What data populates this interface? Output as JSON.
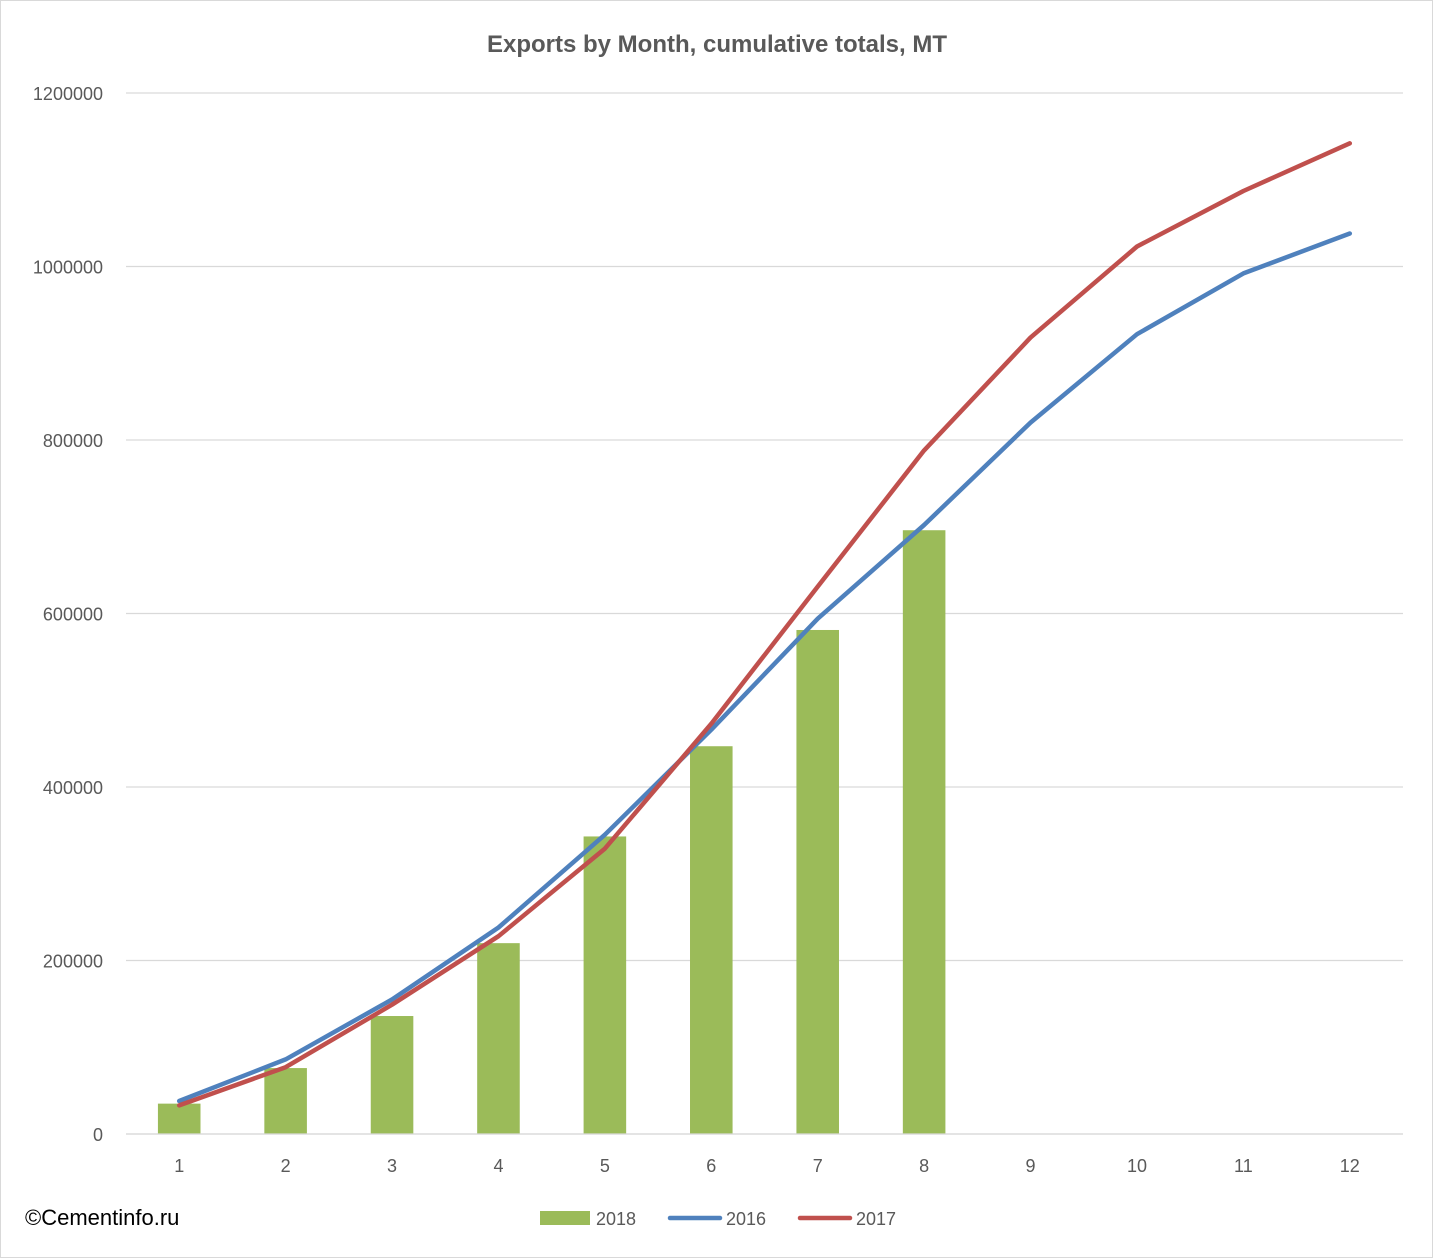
{
  "chart_data": {
    "type": "bar",
    "title": "Exports by Month, cumulative totals, MT",
    "xlabel": "",
    "ylabel": "",
    "categories": [
      "1",
      "2",
      "3",
      "4",
      "5",
      "6",
      "7",
      "8",
      "9",
      "10",
      "11",
      "12"
    ],
    "ylim": [
      0,
      1200000
    ],
    "yticks": [
      0,
      200000,
      400000,
      600000,
      800000,
      1000000,
      1200000
    ],
    "ytick_labels": [
      "0",
      "200000",
      "400000",
      "600000",
      "800000",
      "1000000",
      "1200000"
    ],
    "grid": true,
    "legend_position": "bottom",
    "series": [
      {
        "name": "2018",
        "type": "bar",
        "color": "#9bbb59",
        "values": [
          35000,
          76000,
          136000,
          220000,
          343000,
          447000,
          581000,
          696000,
          null,
          null,
          null,
          null
        ]
      },
      {
        "name": "2016",
        "type": "line",
        "color": "#4f81bd",
        "values": [
          38000,
          86000,
          155000,
          238000,
          345000,
          466000,
          594000,
          702000,
          820000,
          922000,
          992000,
          1038000
        ]
      },
      {
        "name": "2017",
        "type": "line",
        "color": "#c0504d",
        "values": [
          33000,
          77000,
          149000,
          228000,
          329000,
          473000,
          631000,
          788000,
          918000,
          1023000,
          1087000,
          1142000
        ]
      }
    ]
  },
  "watermark": "©Cementinfo.ru"
}
